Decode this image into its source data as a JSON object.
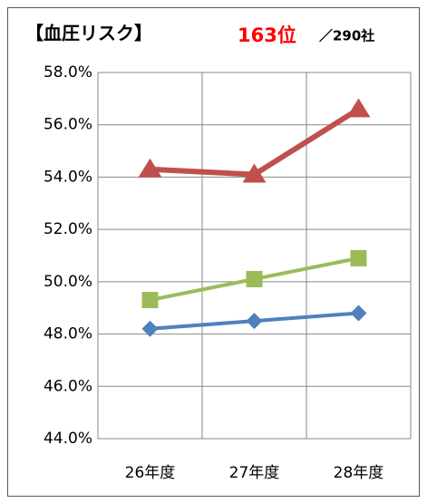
{
  "chart_data": {
    "type": "line",
    "title": "【血圧リスク】",
    "annotations": [
      "163位",
      "／290社"
    ],
    "categories": [
      "26年度",
      "27年度",
      "28年度"
    ],
    "series": [
      {
        "color": "#c0504d",
        "marker": "triangle",
        "values": [
          54.3,
          54.1,
          56.6
        ]
      },
      {
        "color": "#9bbb59",
        "marker": "square",
        "values": [
          49.3,
          50.1,
          50.9
        ]
      },
      {
        "color": "#4f81bd",
        "marker": "diamond",
        "values": [
          48.2,
          48.5,
          48.8
        ]
      }
    ],
    "ylim": [
      44,
      58
    ],
    "yticks": [
      {
        "value": 44,
        "label": "44.0%"
      },
      {
        "value": 46,
        "label": "46.0%"
      },
      {
        "value": 48,
        "label": "48.0%"
      },
      {
        "value": 50,
        "label": "50.0%"
      },
      {
        "value": 52,
        "label": "52.0%"
      },
      {
        "value": 54,
        "label": "54.0%"
      },
      {
        "value": 56,
        "label": "56.0%"
      },
      {
        "value": 58,
        "label": "58.0%"
      }
    ],
    "grid": true
  }
}
